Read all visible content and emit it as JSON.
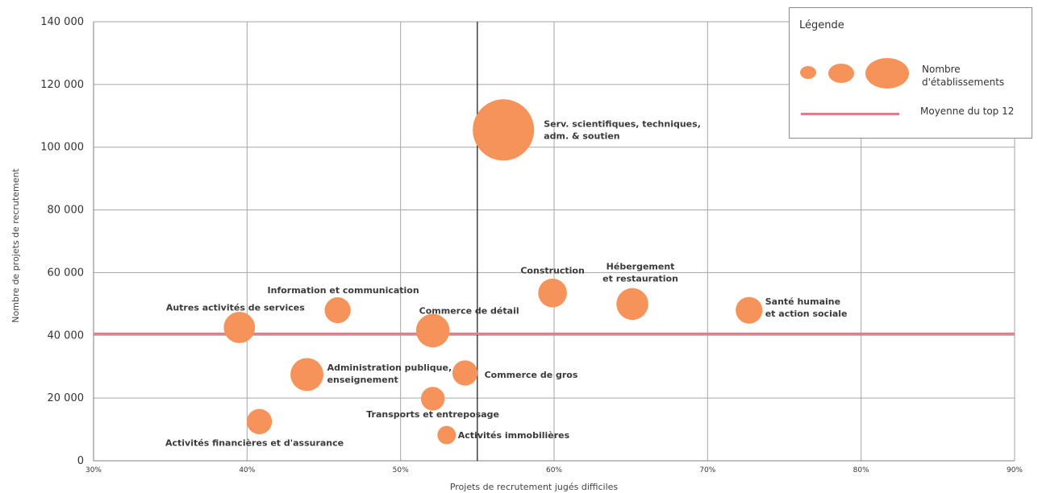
{
  "chart_data": {
    "type": "scatter",
    "xlabel": "Projets de recrutement jugés difficiles",
    "ylabel": "Nombre de projets de recrutement",
    "xlim": [
      30,
      90
    ],
    "ylim": [
      0,
      140000
    ],
    "x_ticks": [
      "30%",
      "40%",
      "50%",
      "60%",
      "70%",
      "80%",
      "90%"
    ],
    "y_ticks": [
      "0",
      "20 000",
      "40 000",
      "60 000",
      "80 000",
      "100 000",
      "120 000",
      "140 000"
    ],
    "grid": true,
    "mean_line": {
      "value": 40500,
      "label": "Moyenne du top 12",
      "color": "#e07d8a"
    },
    "vertical_reference": 55,
    "bubble_color": "#f6935a",
    "points": [
      {
        "label": [
          "Serv. scientifiques, techniques,",
          "adm. & soutien"
        ],
        "x": 56.7,
        "y": 105500,
        "size": 100
      },
      {
        "label": [
          "Construction"
        ],
        "x": 59.9,
        "y": 53500,
        "size": 22
      },
      {
        "label": [
          "Hébergement",
          "et restauration"
        ],
        "x": 65.1,
        "y": 50000,
        "size": 27
      },
      {
        "label": [
          "Santé humaine",
          "et action sociale"
        ],
        "x": 72.7,
        "y": 48000,
        "size": 19
      },
      {
        "label": [
          "Information et communication"
        ],
        "x": 45.9,
        "y": 48000,
        "size": 18
      },
      {
        "label": [
          "Autres activités de services"
        ],
        "x": 39.5,
        "y": 42500,
        "size": 26
      },
      {
        "label": [
          "Commerce de détail"
        ],
        "x": 52.1,
        "y": 41500,
        "size": 30
      },
      {
        "label": [
          "Administration publique,",
          "enseignement"
        ],
        "x": 43.9,
        "y": 27500,
        "size": 29
      },
      {
        "label": [
          "Commerce de gros"
        ],
        "x": 54.2,
        "y": 28000,
        "size": 17
      },
      {
        "label": [
          "Transports et entreposage"
        ],
        "x": 52.1,
        "y": 19800,
        "size": 15
      },
      {
        "label": [
          "Activités financières et d'assurance"
        ],
        "x": 40.8,
        "y": 12500,
        "size": 17
      },
      {
        "label": [
          "Activités immobilières"
        ],
        "x": 53.0,
        "y": 8200,
        "size": 9
      }
    ]
  },
  "legend": {
    "title": "Légende",
    "size_label": "Nombre\nd'établissements",
    "line_label": "Moyenne du top 12",
    "bubble_color": "#f6935a",
    "line_color": "#e07d8a"
  }
}
